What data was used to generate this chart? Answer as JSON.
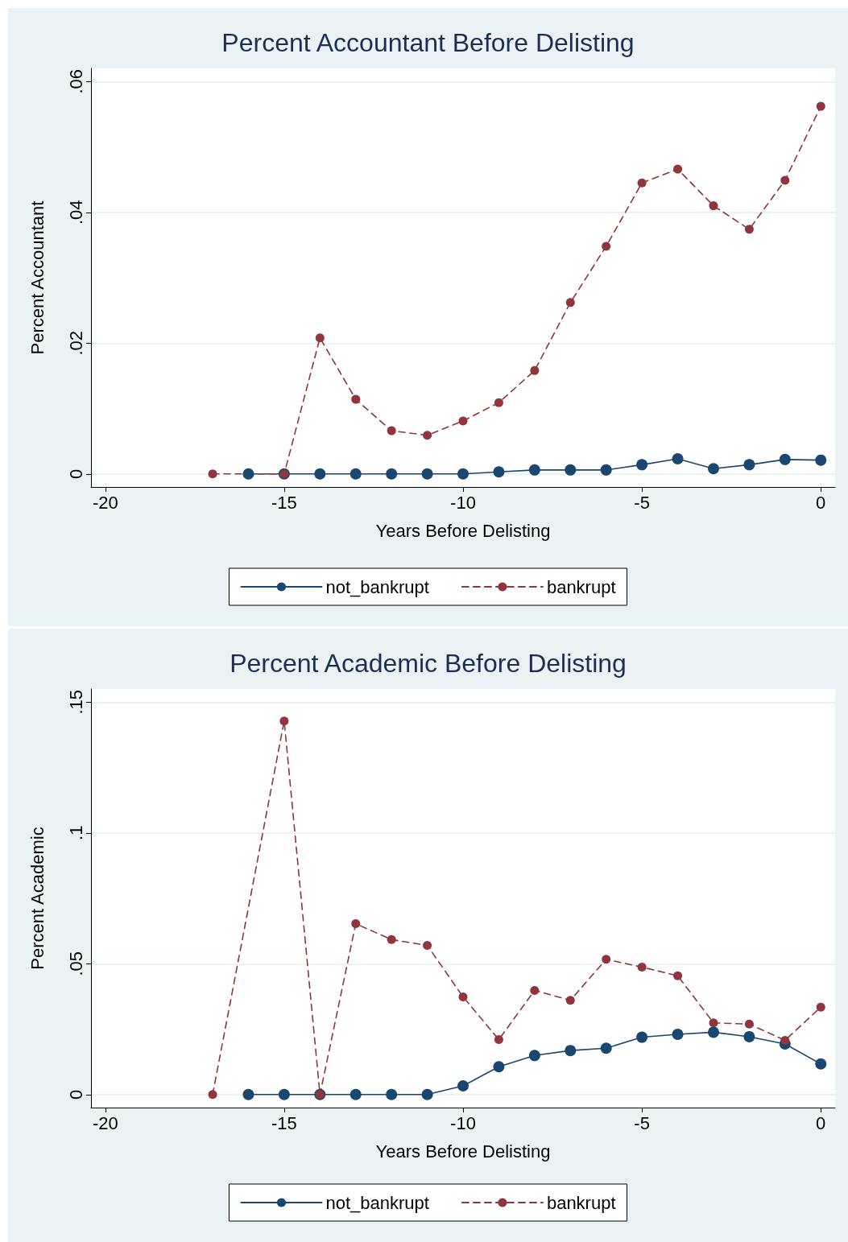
{
  "chart_data": [
    {
      "type": "line",
      "title": "Percent Accountant Before Delisting",
      "xlabel": "Years Before Delisting",
      "ylabel": "Percent Accountant",
      "xlim": [
        -20.4,
        0.4
      ],
      "xticks": [
        -20,
        -15,
        -10,
        -5,
        0
      ],
      "ylim": [
        -0.002,
        0.062
      ],
      "yticks": [
        {
          "value": 0,
          "label": "0"
        },
        {
          "value": 0.02,
          "label": ".02"
        },
        {
          "value": 0.04,
          "label": ".04"
        },
        {
          "value": 0.06,
          "label": ".06"
        }
      ],
      "grid": "y",
      "legend": "bottom",
      "marker": "circle",
      "series": [
        {
          "name": "not_bankrupt",
          "color": "#1a476f",
          "line_style": "solid",
          "x": [
            -16,
            -15,
            -14,
            -13,
            -12,
            -11,
            -10,
            -9,
            -8,
            -7,
            -6,
            -5,
            -4,
            -3,
            -2,
            -1,
            0
          ],
          "values": [
            0,
            0,
            0,
            0,
            0,
            0,
            0,
            0.0003,
            0.0006,
            0.0006,
            0.0006,
            0.0014,
            0.0023,
            0.0008,
            0.0014,
            0.0022,
            0.0021
          ]
        },
        {
          "name": "bankrupt",
          "color": "#90353b",
          "line_style": "dashed",
          "x": [
            -17,
            -15,
            -14,
            -13,
            -12,
            -11,
            -10,
            -9,
            -8,
            -7,
            -6,
            -5,
            -4,
            -3,
            -2,
            -1,
            0
          ],
          "values": [
            0,
            0,
            0.0208,
            0.0114,
            0.0066,
            0.0059,
            0.0081,
            0.0109,
            0.0158,
            0.0262,
            0.0348,
            0.0445,
            0.0466,
            0.041,
            0.0374,
            0.0449,
            0.0562
          ]
        }
      ]
    },
    {
      "type": "line",
      "title": "Percent Academic Before Delisting",
      "xlabel": "Years Before Delisting",
      "ylabel": "Percent Academic",
      "xlim": [
        -20.4,
        0.4
      ],
      "xticks": [
        -20,
        -15,
        -10,
        -5,
        0
      ],
      "ylim": [
        -0.005,
        0.155
      ],
      "yticks": [
        {
          "value": 0,
          "label": "0"
        },
        {
          "value": 0.05,
          "label": ".05"
        },
        {
          "value": 0.1,
          "label": ".1"
        },
        {
          "value": 0.15,
          "label": ".15"
        }
      ],
      "grid": "y",
      "legend": "bottom",
      "marker": "circle",
      "series": [
        {
          "name": "not_bankrupt",
          "color": "#1a476f",
          "line_style": "solid",
          "x": [
            -16,
            -15,
            -14,
            -13,
            -12,
            -11,
            -10,
            -9,
            -8,
            -7,
            -6,
            -5,
            -4,
            -3,
            -2,
            -1,
            0
          ],
          "values": [
            0,
            0,
            0,
            0,
            0,
            0,
            0.0033,
            0.0106,
            0.0149,
            0.0168,
            0.0177,
            0.0219,
            0.023,
            0.0238,
            0.0221,
            0.0193,
            0.0117
          ]
        },
        {
          "name": "bankrupt",
          "color": "#90353b",
          "line_style": "dashed",
          "x": [
            -17,
            -15,
            -14,
            -13,
            -12,
            -11,
            -10,
            -9,
            -8,
            -7,
            -6,
            -5,
            -4,
            -3,
            -2,
            -1,
            0
          ],
          "values": [
            0,
            0.1428,
            0,
            0.0653,
            0.0592,
            0.057,
            0.0373,
            0.021,
            0.0398,
            0.036,
            0.0517,
            0.0487,
            0.0454,
            0.0274,
            0.0269,
            0.0207,
            0.0334
          ]
        }
      ]
    }
  ]
}
